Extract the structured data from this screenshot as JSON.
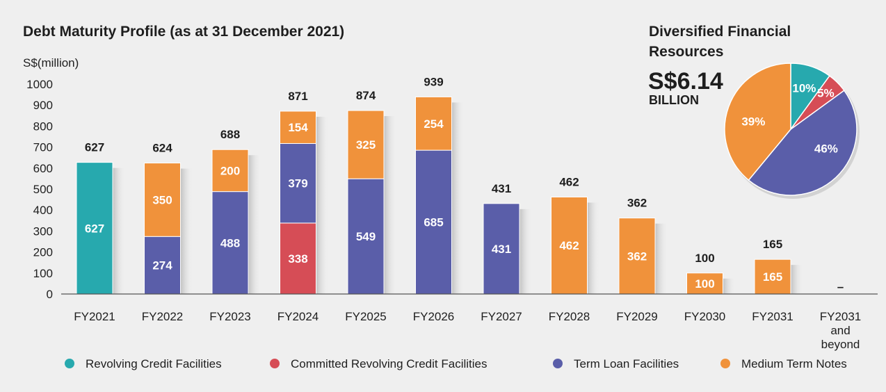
{
  "chart_data": [
    {
      "type": "bar",
      "stacked": true,
      "title": "Debt Maturity Profile (as at 31 December 2021)",
      "ylabel": "S$(million)",
      "xlabel": "",
      "ylim": [
        0,
        1000
      ],
      "yticks": [
        0,
        100,
        200,
        300,
        400,
        500,
        600,
        700,
        800,
        900,
        1000
      ],
      "categories": [
        "FY2021",
        "FY2022",
        "FY2023",
        "FY2024",
        "FY2025",
        "FY2026",
        "FY2027",
        "FY2028",
        "FY2029",
        "FY2030",
        "FY2031",
        "FY2031 and beyond"
      ],
      "category_lines": [
        [
          "FY2021"
        ],
        [
          "FY2022"
        ],
        [
          "FY2023"
        ],
        [
          "FY2024"
        ],
        [
          "FY2025"
        ],
        [
          "FY2026"
        ],
        [
          "FY2027"
        ],
        [
          "FY2028"
        ],
        [
          "FY2029"
        ],
        [
          "FY2030"
        ],
        [
          "FY2031"
        ],
        [
          "FY2031",
          "and",
          "beyond"
        ]
      ],
      "series": [
        {
          "name": "Revolving Credit Facilities",
          "color": "#27a9ae",
          "values": [
            627,
            0,
            0,
            0,
            0,
            0,
            0,
            0,
            0,
            0,
            0,
            0
          ]
        },
        {
          "name": "Committed Revolving Credit Facilities",
          "color": "#d64d56",
          "values": [
            0,
            0,
            0,
            338,
            0,
            0,
            0,
            0,
            0,
            0,
            0,
            0
          ]
        },
        {
          "name": "Term Loan Facilities",
          "color": "#5a5ea9",
          "values": [
            0,
            274,
            488,
            379,
            549,
            685,
            431,
            0,
            0,
            0,
            0,
            0
          ]
        },
        {
          "name": "Medium Term Notes",
          "color": "#f0923b",
          "values": [
            0,
            350,
            200,
            154,
            325,
            254,
            0,
            462,
            362,
            100,
            165,
            0
          ]
        }
      ],
      "totals": [
        "627",
        "624",
        "688",
        "871",
        "874",
        "939",
        "431",
        "462",
        "362",
        "100",
        "165",
        "–"
      ]
    },
    {
      "type": "pie",
      "title": "Diversified Financial Resources",
      "total_value": "S$6.14",
      "total_unit": "BILLION",
      "slices": [
        {
          "name": "Revolving Credit Facilities",
          "value": 10,
          "label": "10%",
          "color": "#27a9ae"
        },
        {
          "name": "Committed Revolving Credit Facilities",
          "value": 5,
          "label": "5%",
          "color": "#d64d56"
        },
        {
          "name": "Term Loan Facilities",
          "value": 46,
          "label": "46%",
          "color": "#5a5ea9"
        },
        {
          "name": "Medium Term Notes",
          "value": 39,
          "label": "39%",
          "color": "#f0923b"
        }
      ]
    }
  ],
  "legend": [
    {
      "label": "Revolving Credit Facilities",
      "color": "#27a9ae"
    },
    {
      "label": "Committed Revolving Credit Facilities",
      "color": "#d64d56"
    },
    {
      "label": "Term Loan Facilities",
      "color": "#5a5ea9"
    },
    {
      "label": "Medium Term Notes",
      "color": "#f0923b"
    }
  ]
}
